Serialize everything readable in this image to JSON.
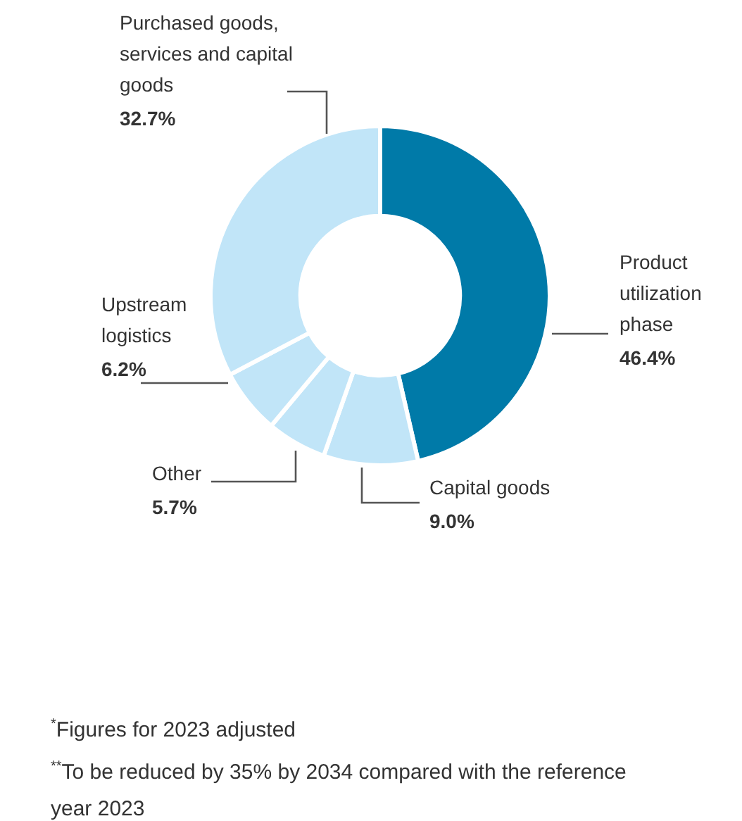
{
  "chart_data": {
    "type": "donut",
    "categories": [
      "Product utilization phase",
      "Capital goods",
      "Other",
      "Upstream logistics",
      "Purchased goods, services and capital goods"
    ],
    "values": [
      46.4,
      9.0,
      5.7,
      6.2,
      32.7
    ],
    "colors": [
      "#007aa8",
      "#c1e5f8",
      "#c1e5f8",
      "#c1e5f8",
      "#c1e5f8"
    ],
    "value_labels": [
      "46.4%",
      "9.0%",
      "5.7%",
      "6.2%",
      "32.7%"
    ],
    "legend": false,
    "annotations": [
      "$^{*}$Figures for 2023 adjusted",
      "$^{**}$To be reduced by 35% by 2034 compared with the reference year 2023"
    ]
  }
}
